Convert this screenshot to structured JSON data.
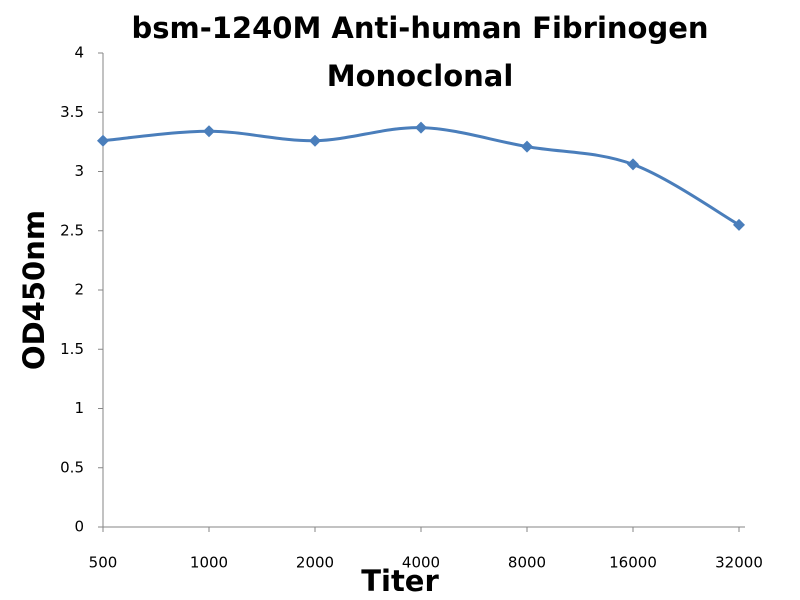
{
  "chart_data": {
    "type": "line",
    "title": "bsm-1240M Anti-human Fibrinogen Monoclonal",
    "x_label": "Titer",
    "y_label": "OD450nm",
    "categories": [
      "500",
      "1000",
      "2000",
      "4000",
      "8000",
      "16000",
      "32000"
    ],
    "series": [
      {
        "name": "bsm-1240M",
        "color": "#4a7ebb",
        "values": [
          3.26,
          3.34,
          3.26,
          3.37,
          3.21,
          3.06,
          2.55
        ]
      }
    ],
    "ylim": [
      0,
      4
    ],
    "yticks": [
      0,
      0.5,
      1,
      1.5,
      2,
      2.5,
      3,
      3.5,
      4
    ],
    "grid": false,
    "smooth": true
  }
}
